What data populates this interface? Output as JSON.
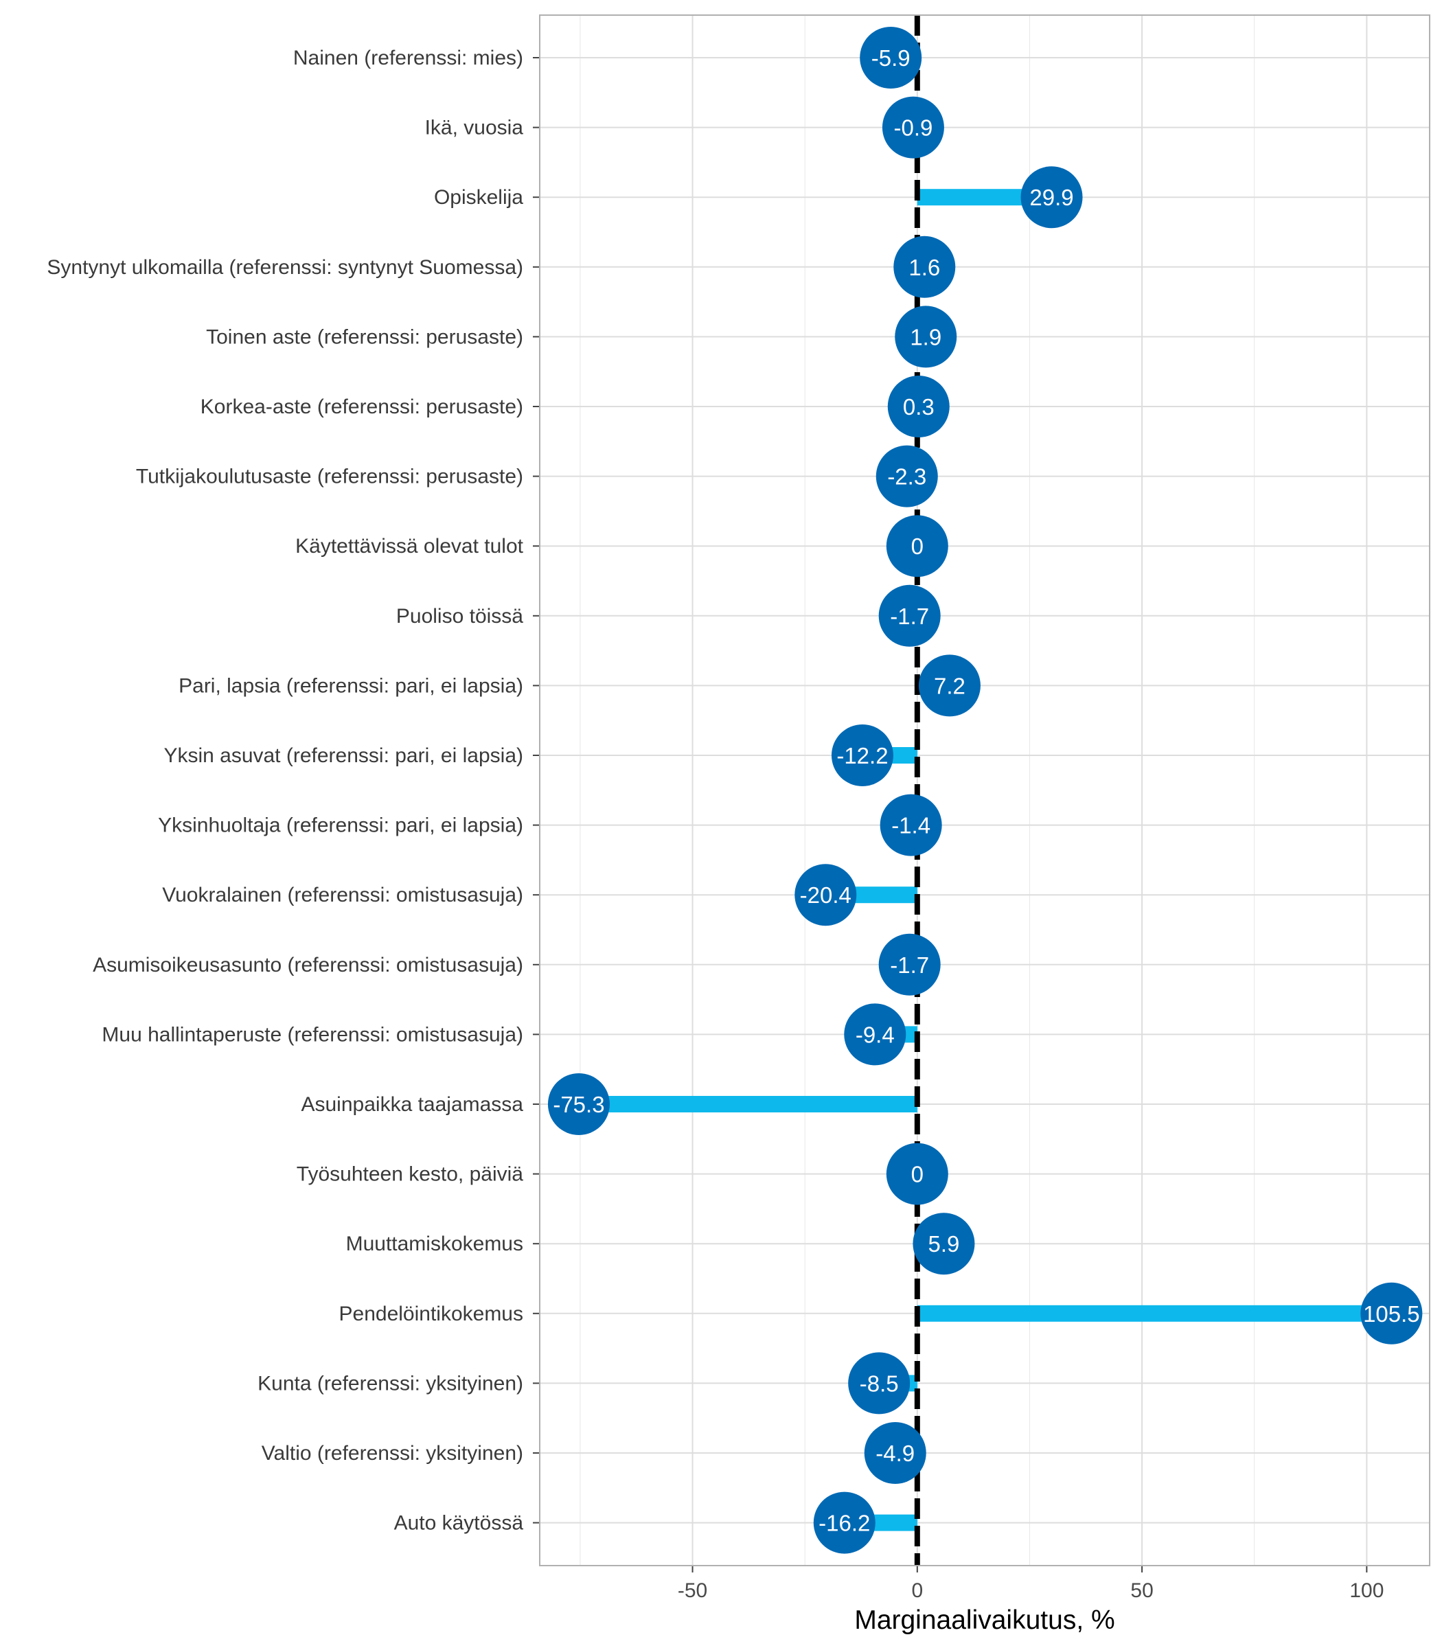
{
  "chart_data": {
    "type": "bar",
    "orientation": "horizontal",
    "style": "lollipop",
    "categories": [
      "Nainen (referenssi: mies)",
      "Ikä, vuosia",
      "Opiskelija",
      "Syntynyt ulkomailla (referenssi: syntynyt Suomessa)",
      "Toinen aste (referenssi: perusaste)",
      "Korkea-aste (referenssi: perusaste)",
      "Tutkijakoulutusaste (referenssi: perusaste)",
      "Käytettävissä olevat tulot",
      "Puoliso töissä",
      "Pari, lapsia (referenssi: pari, ei lapsia)",
      "Yksin asuvat (referenssi: pari, ei lapsia)",
      "Yksinhuoltaja (referenssi: pari, ei lapsia)",
      "Vuokralainen (referenssi: omistusasuja)",
      "Asumisoikeusasunto (referenssi: omistusasuja)",
      "Muu hallintaperuste (referenssi: omistusasuja)",
      "Asuinpaikka taajamassa",
      "Työsuhteen kesto, päiviä",
      "Muuttamiskokemus",
      "Pendelöintikokemus",
      "Kunta (referenssi: yksityinen)",
      "Valtio (referenssi: yksityinen)",
      "Auto käytössä"
    ],
    "values": [
      -5.9,
      -0.9,
      29.9,
      1.6,
      1.9,
      0.3,
      -2.3,
      0,
      -1.7,
      7.2,
      -12.2,
      -1.4,
      -20.4,
      -1.7,
      -9.4,
      -75.3,
      0,
      5.9,
      105.5,
      -8.5,
      -4.9,
      -16.2
    ],
    "data_labels": [
      "-5.9",
      "-0.9",
      "29.9",
      "1.6",
      "1.9",
      "0.3",
      "-2.3",
      "0",
      "-1.7",
      "7.2",
      "-12.2",
      "-1.4",
      "-20.4",
      "-1.7",
      "-9.4",
      "-75.3",
      "0",
      "5.9",
      "105.5",
      "-8.5",
      "-4.9",
      "-16.2"
    ],
    "xlabel": "Marginaalivaikutus, %",
    "ylabel": "",
    "xlim": [
      -84,
      114
    ],
    "xticks": [
      -50,
      0,
      50,
      100
    ],
    "xtick_labels": [
      "-50",
      "0",
      "50",
      "100"
    ],
    "reference_line": 0,
    "grid": true,
    "legend": "none",
    "colors": {
      "bar": "#0DB8EC",
      "point": "#0069B4",
      "reference_line": "#000000",
      "grid": "#DDDDDD",
      "panel_border": "#B0B0B0"
    }
  }
}
